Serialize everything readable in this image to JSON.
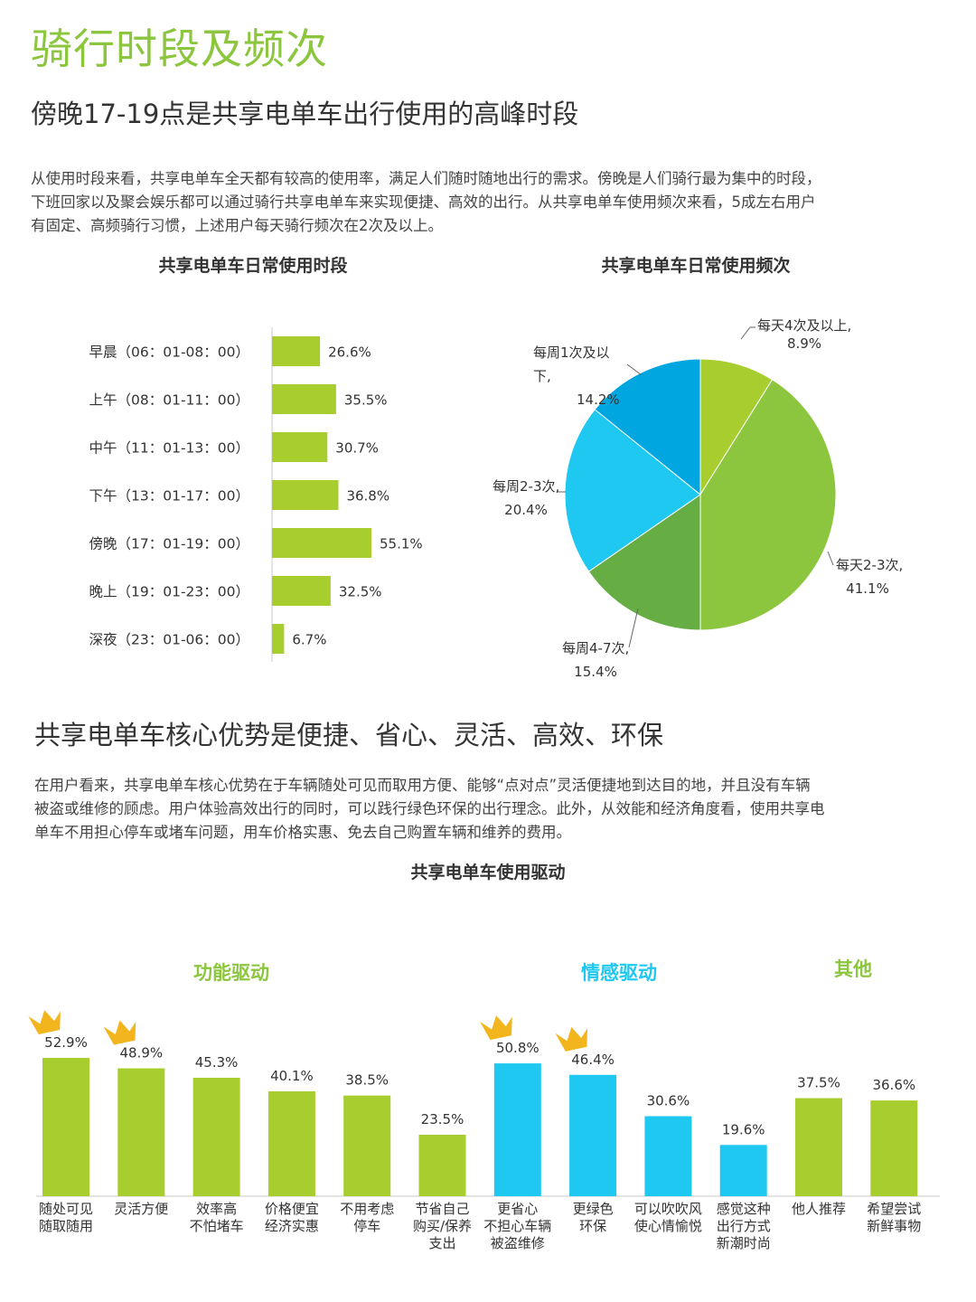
{
  "page_title": "骑行时段及频次",
  "section1": {
    "heading": "傍晚17-19点是共享电单车出行使用的高峰时段",
    "paragraph_lines": [
      "从使用时段来看，共享电单车全天都有较高的使用率，满足人们随时随地出行的需求。傍晚是人们骑行最为集中的时段，",
      "下班回家以及聚会娱乐都可以通过骑行共享电单车来实现便捷、高效的出行。从共享电单车使用频次来看，5成左右用户",
      "有固定、高频骑行习惯，上述用户每天骑行频次在2次及以上。"
    ]
  },
  "section2": {
    "heading": "共享电单车核心优势是便捷、省心、灵活、高效、环保",
    "paragraph_lines": [
      "在用户看来，共享电单车核心优势在于车辆随处可见而取用方便、能够“点对点”灵活便捷地到达目的地，并且没有车辆",
      "被盗或维修的顾虑。用户体验高效出行的同时，可以践行绿色环保的出行理念。此外，从效能和经济角度看，使用共享电",
      "单车不用担心停车或堵车问题，用车价格实惠、免去自己购置车辆和维养的费用。"
    ]
  },
  "colors": {
    "title_green": "#8cc63e",
    "bar_green": "#a8cd2e",
    "bar_blue": "#1ec8f0",
    "pie_light_green": "#a8cd2e",
    "pie_green": "#8cc63e",
    "pie_dark_green": "#66ad44",
    "pie_blue": "#1ec8f0",
    "pie_deep_blue": "#00a6e0",
    "crown": "#f2b51d"
  },
  "chart_data": [
    {
      "type": "bar",
      "orientation": "horizontal",
      "title": "共享电单车日常使用时段",
      "categories": [
        "早晨（06：01-08：00）",
        "上午（08：01-11：00）",
        "中午（11：01-13：00）",
        "下午（13：01-17：00）",
        "傍晚（17：01-19：00）",
        "晚上（19：01-23：00）",
        "深夜（23：01-06：00）"
      ],
      "values": [
        26.6,
        35.5,
        30.7,
        36.8,
        55.1,
        32.5,
        6.7
      ],
      "value_labels": [
        "26.6%",
        "35.5%",
        "30.7%",
        "36.8%",
        "55.1%",
        "32.5%",
        "6.7%"
      ],
      "xlim": [
        0,
        100
      ],
      "grid": false
    },
    {
      "type": "pie",
      "title": "共享电单车日常使用频次",
      "slices": [
        {
          "label_lines": [
            "每天4次及以上,"
          ],
          "value": 8.9,
          "value_label": "8.9%"
        },
        {
          "label_lines": [
            "每天2-3次,"
          ],
          "value": 41.1,
          "value_label": "41.1%"
        },
        {
          "label_lines": [
            "每周4-7次,"
          ],
          "value": 15.4,
          "value_label": "15.4%"
        },
        {
          "label_lines": [
            "每周2-3次,"
          ],
          "value": 20.4,
          "value_label": "20.4%"
        },
        {
          "label_lines": [
            "每周1次及以",
            "下, "
          ],
          "value": 14.2,
          "value_label": "14.2%"
        }
      ]
    },
    {
      "type": "bar",
      "orientation": "vertical",
      "title": "共享电单车使用驱动",
      "groups": [
        {
          "label": "功能驱动",
          "color": "#8cc63e"
        },
        {
          "label": "情感驱动",
          "color": "#1ec8f0"
        },
        {
          "label": "其他",
          "color": "#8cc63e"
        }
      ],
      "categories": [
        {
          "lines": [
            "随处可见",
            "随取随用"
          ],
          "group": 0
        },
        {
          "lines": [
            "灵活方便"
          ],
          "group": 0
        },
        {
          "lines": [
            "效率高",
            "不怕堵车"
          ],
          "group": 0
        },
        {
          "lines": [
            "价格便宜",
            "经济实惠"
          ],
          "group": 0
        },
        {
          "lines": [
            "不用考虑",
            "停车"
          ],
          "group": 0
        },
        {
          "lines": [
            "节省自己",
            "购买/保养",
            "支出"
          ],
          "group": 0
        },
        {
          "lines": [
            "更省心",
            "不担心车辆",
            "被盗维修"
          ],
          "group": 1
        },
        {
          "lines": [
            "更绿色",
            "环保"
          ],
          "group": 1
        },
        {
          "lines": [
            "可以吹吹风",
            "使心情愉悦"
          ],
          "group": 1
        },
        {
          "lines": [
            "感觉这种",
            "出行方式",
            "新潮时尚"
          ],
          "group": 1
        },
        {
          "lines": [
            "他人推荐"
          ],
          "group": 2
        },
        {
          "lines": [
            "希望尝试",
            "新鲜事物"
          ],
          "group": 2
        }
      ],
      "values": [
        52.9,
        48.9,
        45.3,
        40.1,
        38.5,
        23.5,
        50.8,
        46.4,
        30.6,
        19.6,
        37.5,
        36.6
      ],
      "value_labels": [
        "52.9%",
        "48.9%",
        "45.3%",
        "40.1%",
        "38.5%",
        "23.5%",
        "50.8%",
        "46.4%",
        "30.6%",
        "19.6%",
        "37.5%",
        "36.6%"
      ],
      "crowned": [
        0,
        1,
        6,
        7
      ],
      "ylim": [
        0,
        100
      ],
      "grid": false
    }
  ]
}
